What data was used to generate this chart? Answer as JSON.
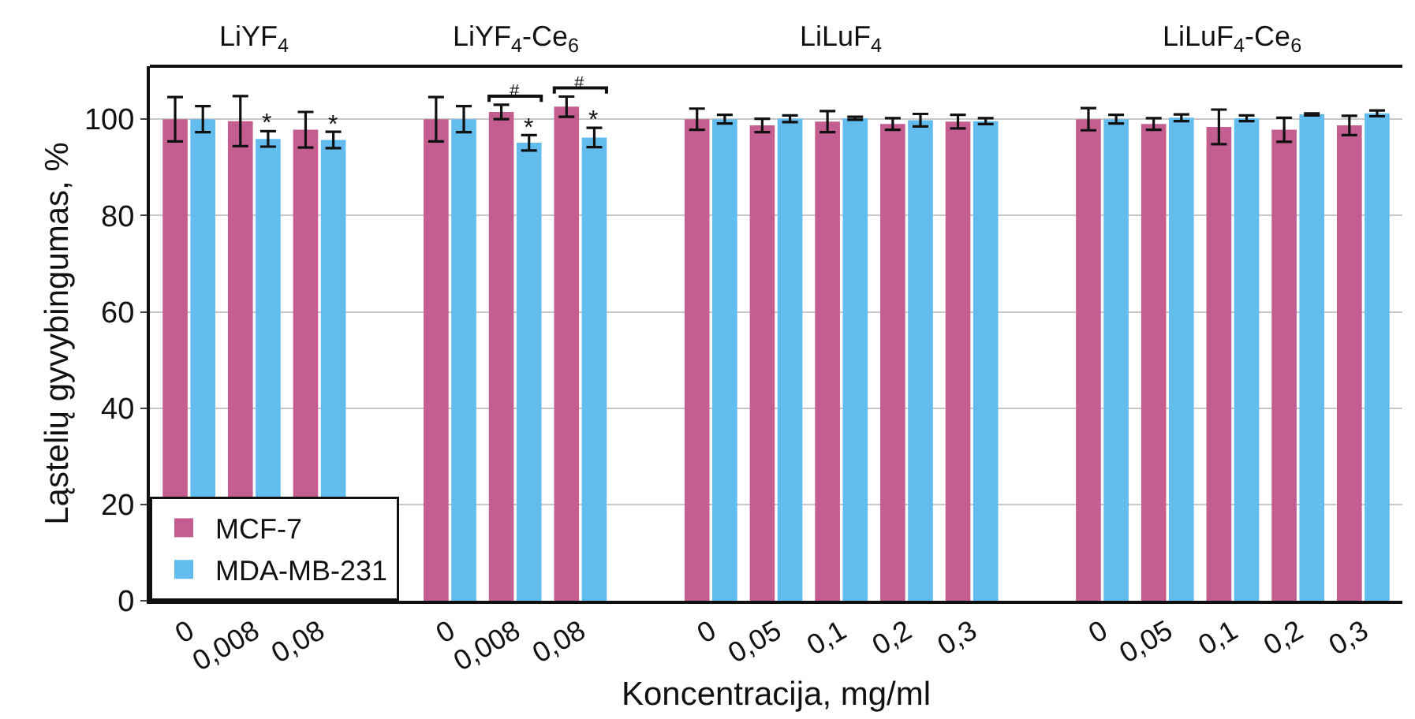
{
  "chart_data": {
    "type": "bar",
    "categories": [
      "0",
      "0,008",
      "0,08",
      null,
      "0",
      "0,008",
      "0,08",
      null,
      "0",
      "0,05",
      "0,1",
      "0,2",
      "0,3",
      null,
      "0",
      "0,05",
      "0,1",
      "0,2",
      "0,3"
    ],
    "series": [
      {
        "name": "MCF-7",
        "color": "#c45e90",
        "values": [
          100,
          99.6,
          97.8,
          null,
          100,
          101.5,
          102.6,
          null,
          100,
          98.7,
          99.5,
          99,
          99.5,
          null,
          100,
          99,
          98.4,
          97.8,
          98.7
        ],
        "errors": [
          4.6,
          5.2,
          3.7,
          null,
          4.6,
          1.5,
          2.1,
          null,
          2.2,
          1.4,
          2.2,
          1.2,
          1.4,
          null,
          2.3,
          1.2,
          3.6,
          2.5,
          2
        ],
        "value_labels": [
          null,
          null,
          null,
          null,
          null,
          "#",
          "#",
          null,
          null,
          null,
          null,
          null,
          null,
          null,
          null,
          null,
          null,
          null,
          null
        ]
      },
      {
        "name": "MDA-MB-231",
        "color": "#62bdee",
        "values": [
          100,
          95.9,
          95.7,
          null,
          100,
          95.1,
          96.2,
          null,
          100,
          100.1,
          100.2,
          99.8,
          99.6,
          null,
          100,
          100.3,
          100.2,
          101,
          101.2
        ],
        "errors": [
          2.7,
          1.6,
          1.7,
          null,
          2.7,
          1.6,
          2,
          null,
          0.9,
          0.7,
          0.3,
          1.3,
          0.6,
          null,
          0.9,
          0.7,
          0.6,
          0.2,
          0.6
        ],
        "value_labels": [
          null,
          "*",
          "*",
          null,
          null,
          "*",
          "*",
          null,
          null,
          null,
          null,
          null,
          null,
          null,
          null,
          null,
          null,
          null,
          null
        ]
      }
    ],
    "annotations": [
      "LiYF$_{4}$",
      "LiYF$_{4}$-Ce$_{6}$",
      "LiLuF$_{4}$",
      "LiLuF$_{4}$-Ce$_{6}$"
    ],
    "xlabel": "Koncentracija, mg/ml",
    "ylabel": "Ląstelių gyvybingumas, %",
    "ylim": [
      0,
      111
    ],
    "yticks": [
      0,
      20,
      40,
      60,
      80,
      100
    ],
    "grid": "y",
    "legend": "bottom left"
  }
}
